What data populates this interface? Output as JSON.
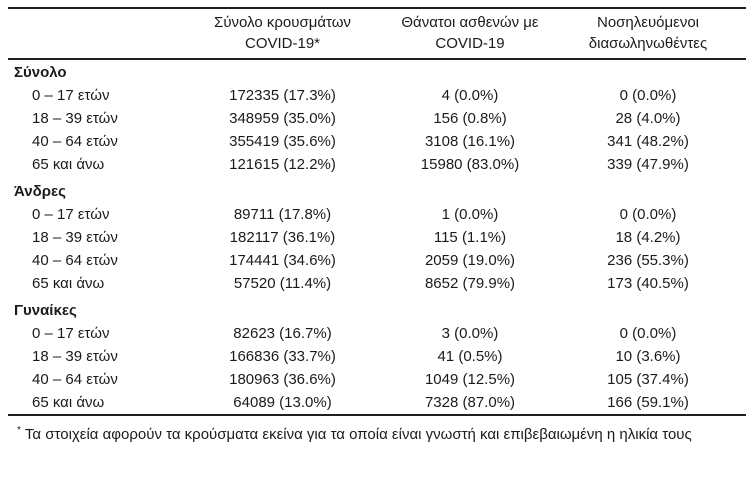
{
  "table": {
    "columns": [
      {
        "line1": "Σύνολο κρουσμάτων",
        "line2": "COVID-19*"
      },
      {
        "line1": "Θάνατοι ασθενών με",
        "line2": "COVID-19"
      },
      {
        "line1": "Νοσηλευόμενοι",
        "line2": "διασωληνωθέντες"
      }
    ],
    "sections": [
      {
        "label": "Σύνολο",
        "rows": [
          {
            "age": "0 – 17 ετών",
            "cases": "172335 (17.3%)",
            "deaths": "4 (0.0%)",
            "intubated": "0 (0.0%)"
          },
          {
            "age": "18 – 39 ετών",
            "cases": "348959 (35.0%)",
            "deaths": "156 (0.8%)",
            "intubated": "28 (4.0%)"
          },
          {
            "age": "40 – 64 ετών",
            "cases": "355419 (35.6%)",
            "deaths": "3108 (16.1%)",
            "intubated": "341 (48.2%)"
          },
          {
            "age": "65 και άνω",
            "cases": "121615 (12.2%)",
            "deaths": "15980 (83.0%)",
            "intubated": "339 (47.9%)"
          }
        ]
      },
      {
        "label": "Άνδρες",
        "rows": [
          {
            "age": "0 – 17 ετών",
            "cases": "89711 (17.8%)",
            "deaths": "1 (0.0%)",
            "intubated": "0 (0.0%)"
          },
          {
            "age": "18 – 39 ετών",
            "cases": "182117 (36.1%)",
            "deaths": "115 (1.1%)",
            "intubated": "18 (4.2%)"
          },
          {
            "age": "40 – 64 ετών",
            "cases": "174441 (34.6%)",
            "deaths": "2059 (19.0%)",
            "intubated": "236 (55.3%)"
          },
          {
            "age": "65 και άνω",
            "cases": "57520 (11.4%)",
            "deaths": "8652 (79.9%)",
            "intubated": "173 (40.5%)"
          }
        ]
      },
      {
        "label": "Γυναίκες",
        "rows": [
          {
            "age": "0 – 17 ετών",
            "cases": "82623 (16.7%)",
            "deaths": "3 (0.0%)",
            "intubated": "0 (0.0%)"
          },
          {
            "age": "18 – 39 ετών",
            "cases": "166836 (33.7%)",
            "deaths": "41 (0.5%)",
            "intubated": "10 (3.6%)"
          },
          {
            "age": "40 – 64 ετών",
            "cases": "180963 (36.6%)",
            "deaths": "1049 (12.5%)",
            "intubated": "105 (37.4%)"
          },
          {
            "age": "65 και άνω",
            "cases": "64089 (13.0%)",
            "deaths": "7328 (87.0%)",
            "intubated": "166 (59.1%)"
          }
        ]
      }
    ]
  },
  "footnote": {
    "marker": "*",
    "text": "Τα στοιχεία αφορούν τα κρούσματα εκείνα για τα οποία είναι γνωστή και επιβεβαιωμένη η ηλικία τους"
  }
}
